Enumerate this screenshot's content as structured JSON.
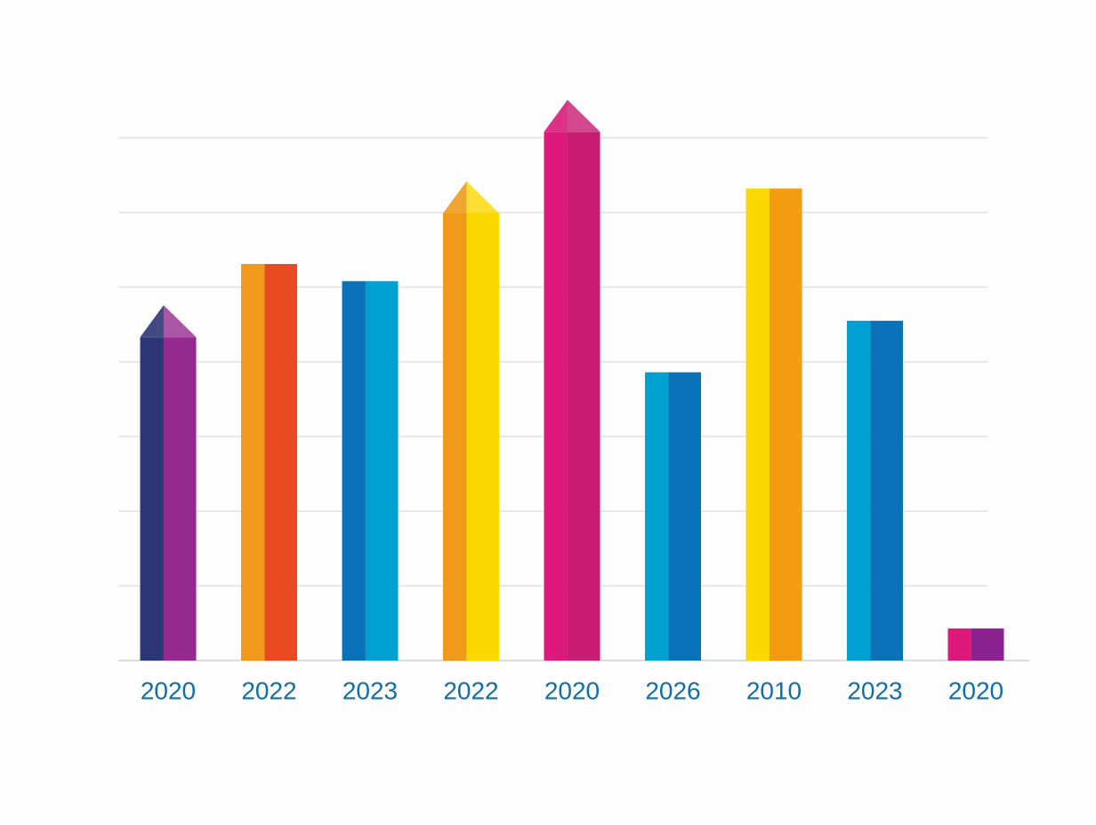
{
  "chart_data": {
    "type": "bar",
    "categories": [
      "2020",
      "2022",
      "2023",
      "2022",
      "2020",
      "2026",
      "2010",
      "2023",
      "2020"
    ],
    "values": [
      4.33,
      5.31,
      5.08,
      5.99,
      7.08,
      3.86,
      6.32,
      4.55,
      0.43
    ],
    "colors": [
      [
        "#2c3675",
        "#952a8e"
      ],
      [
        "#f0991c",
        "#ea4a21"
      ],
      [
        "#0a72b9",
        "#00a1d1"
      ],
      [
        "#f09a1c",
        "#fad800"
      ],
      [
        "#db1a7c",
        "#c81c70"
      ],
      [
        "#00a1d1",
        "#0a72b9"
      ],
      [
        "#fad800",
        "#f39c12"
      ],
      [
        "#00a1d1",
        "#0a72b9"
      ],
      [
        "#db1a7c",
        "#8a2290"
      ]
    ],
    "caps": [
      true,
      false,
      false,
      true,
      true,
      false,
      false,
      false,
      false
    ],
    "ylim": [
      0,
      7.5
    ],
    "yticks": [
      1,
      2,
      3,
      4,
      5,
      6,
      7
    ],
    "grid": true
  }
}
